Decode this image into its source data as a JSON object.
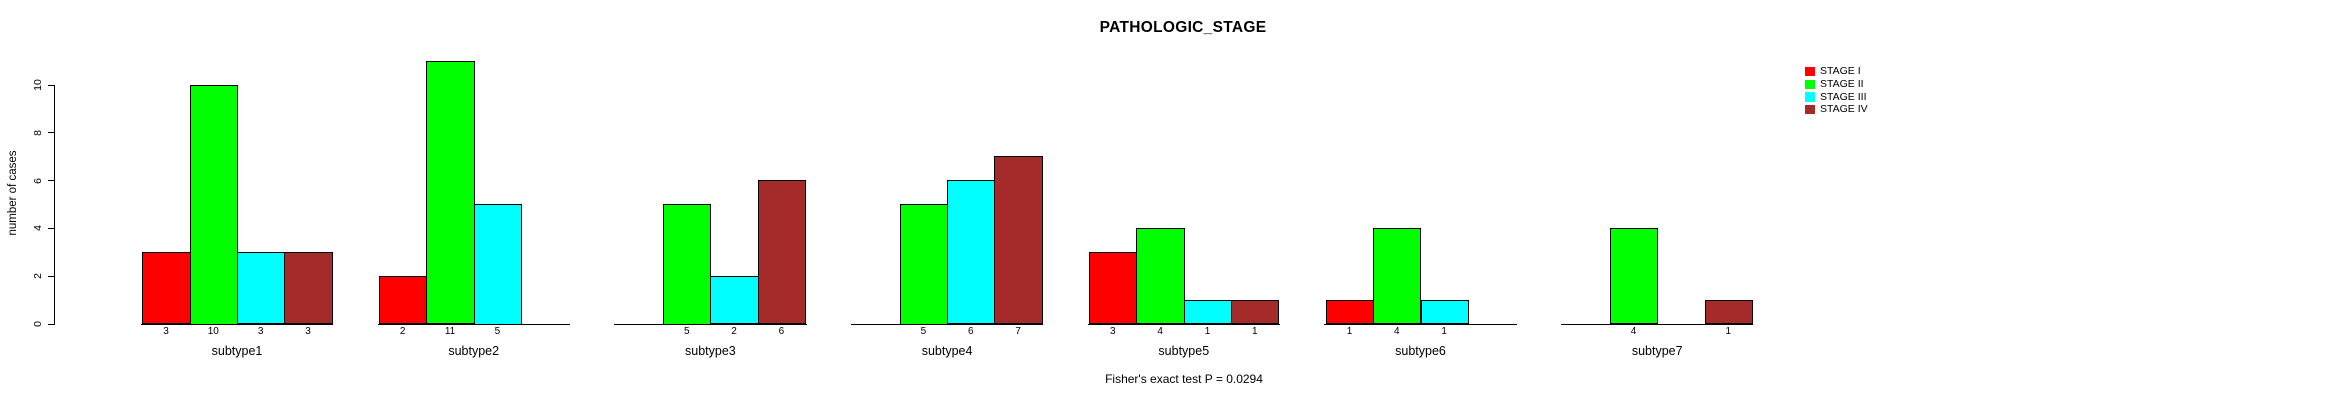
{
  "chart_data": {
    "type": "bar",
    "title": "PATHOLOGIC_STAGE",
    "ylabel": "number of cases",
    "xlabel": "",
    "annotation": "Fisher's exact test P = 0.0294",
    "categories": [
      "subtype1",
      "subtype2",
      "subtype3",
      "subtype4",
      "subtype5",
      "subtype6",
      "subtype7"
    ],
    "series": [
      {
        "name": "STAGE I",
        "color": "#FF0000",
        "values": [
          3,
          2,
          0,
          0,
          3,
          1,
          0
        ]
      },
      {
        "name": "STAGE II",
        "color": "#00FF00",
        "values": [
          10,
          11,
          5,
          5,
          4,
          4,
          4
        ]
      },
      {
        "name": "STAGE III",
        "color": "#00FFFF",
        "values": [
          3,
          5,
          2,
          6,
          1,
          1,
          0
        ]
      },
      {
        "name": "STAGE IV",
        "color": "#A52A2A",
        "values": [
          3,
          0,
          6,
          7,
          1,
          0,
          1
        ]
      }
    ],
    "bar_count_labels_shown_only_for_nonzero": true,
    "yticks": [
      0,
      2,
      4,
      6,
      8,
      10
    ],
    "ylim": [
      0,
      11.5
    ],
    "grid": false,
    "legend_position": "top-right",
    "background_color": "#FFFFFF",
    "text_color": "#000000"
  }
}
